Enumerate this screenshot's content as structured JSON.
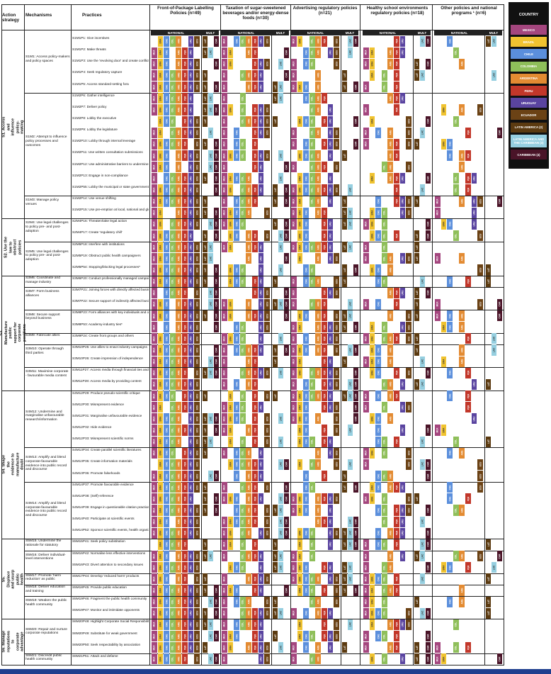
{
  "headers": {
    "action_strategy": "Action strategy",
    "mechanisms": "Mechanisms",
    "practices": "Practices",
    "national": "NATIONAL",
    "mult": "MULT",
    "policies": [
      {
        "label": "Front-of-Package Labelling Policies (n=49)"
      },
      {
        "label": "Taxation of sugar-sweetened beverages and/or energy-dense foods (n=30)"
      },
      {
        "label": "Advertising regulatory policies (n=21)"
      },
      {
        "label": "Healthy school environments regulatory policies (n=18)"
      },
      {
        "label": "Other policies and national programs ¹ (n=6)"
      }
    ]
  },
  "legend": {
    "title": "COUNTRY",
    "items": [
      {
        "label": "MEXICO",
        "color": "#a4467e"
      },
      {
        "label": "BRAZIL",
        "color": "#f0c330"
      },
      {
        "label": "CHILE",
        "color": "#5b8fdc"
      },
      {
        "label": "COLOMBIA",
        "color": "#8fbf5a"
      },
      {
        "label": "ARGENTINA",
        "color": "#e38b32"
      },
      {
        "label": "PERU",
        "color": "#c2372a"
      },
      {
        "label": "URUGUAY",
        "color": "#5a44a0"
      },
      {
        "label": "ECUADOR",
        "color": "#6b4215"
      },
      {
        "label": "LATIN AMERICA (2)",
        "color": "#5b3a10"
      },
      {
        "label": "LATIN AMERICA AND THE CARIBBEAN (3)",
        "color": "#96cfe0"
      },
      {
        "label": "CARIBBEAN (4)",
        "color": "#4a1428"
      }
    ]
  },
  "codes": {
    "nat": [
      "MEX",
      "BRA",
      "CHE",
      "COL",
      "ARG",
      "PER",
      "URU",
      "ECU"
    ],
    "mult": [
      "LAT",
      "LAC",
      "CAR"
    ]
  },
  "strategies": [
    {
      "label": "S1. Access and influence policy-making",
      "mechanisms": [
        {
          "label": "S1M1: Access policy-makers and policy spaces",
          "practices": [
            "S1M1P1: Give incentives",
            "S1M1P2: Make threats",
            "S1M1P3: Use the 'revolving door' and create conflicts of interest",
            "S1M1P4: Seek regulatory capture",
            "S1M1P5: Access standard-setting fora"
          ]
        },
        {
          "label": "S1M2: Attempt to influence policy processes and outcomes",
          "practices": [
            "S1M2P6: Gather intelligence",
            "S1M2P7: Deliver policy",
            "S1M2P8: Lobby the executive",
            "S1M2P9: Lobby the legislature",
            "S1M2P10: Lobby through internal leverage",
            "S1M2P11: Use written consultation submissions",
            "S1M2P12: Use administrative barriers to undermine adopted policy",
            "S1M2P13: Engage in non-compliance",
            "S1M2P55: Lobby the municipal or state governments*"
          ]
        },
        {
          "label": "S1M3: Manage policy venues",
          "practices": [
            "S1M2P14: Use venue shifting",
            "S1M2P15: Use pre-emption at local, national and global levels"
          ]
        }
      ]
    },
    {
      "label": "S2. Use the law to obstruct policies",
      "mechanisms": [
        {
          "label": "S2M4: Use legal challenges to policy pre- and post-adoption",
          "practices": [
            "S2M4P16: Threaten/take legal action",
            "S2M4P17: Create 'regulatory chill'"
          ]
        },
        {
          "label": "S2M5: Use legal challenges to policy pre- and post-adoption",
          "practices": [
            "S2M5P18: Interfere with institutions",
            "S2M5P19: Obstruct public health campaigners",
            "S2M5P54: Stopping/blocking legal processes*"
          ]
        }
      ]
    },
    {
      "label": "S3. Manufacture public support for corporate positions",
      "mechanisms": [
        {
          "label": "S3M6: Coordinate and manage industry",
          "practices": [
            "S3M6P20: Conduct professionally managed campaigns"
          ]
        },
        {
          "label": "S3M7: Form business alliances",
          "practices": [
            "S3M7P21: Joining forces with directly affected businesses",
            "S3M7P22: Secure support of indirectly affected businesses"
          ]
        },
        {
          "label": "S3M8: Secure support beyond business",
          "practices": [
            "S3M8P23: Form alliances with key individuals and organisations",
            "S3M8P53: Academy-industry ties*"
          ]
        },
        {
          "label": "S3M9: Fabricate allies",
          "practices": [
            "S3M9P24: Create front groups and others"
          ]
        },
        {
          "label": "S3M10: Operate through third parties",
          "practices": [
            "S3M10P25: Use allies to enact industry campaigns",
            "S3M10P26: Create impression of independence"
          ]
        },
        {
          "label": "S3M11: Maximise corporate - favourable media content",
          "practices": [
            "S3M11P27: Access media through financial ties and relationships",
            "S3M11P28: Access media by providing content"
          ]
        }
      ]
    },
    {
      "label": "S4. Shape the evidence to manufacture doubt",
      "mechanisms": [
        {
          "label": "S4M12: Undermine and marginalise unfavourable research/information",
          "practices": [
            "S4M12P29: Produce pseudo-scientific critique",
            "S4M12P30: Misrepresent evidence",
            "S4M12P31: Marginalise unfavourable evidence",
            "S4M12P32: Hide evidence",
            "S4M12P33: Misrepresent scientific norms"
          ]
        },
        {
          "label": "S4M13: Amplify and blend corporate-favourable evidence into public record and discourse",
          "practices": [
            "S4M13P34: Create parallel scientific literatures",
            "S4M13P35: Create information materials",
            "S4M13P36: Promote falsehoods"
          ]
        },
        {
          "label": "S4M14: Amplify and blend corporate-favourable evidence into public record and discourse",
          "practices": [
            "S4M14P37: Promote favourable evidence",
            "S4M14P38: (Self)-reference",
            "S4M14P39: Engage in questionable citation practices",
            "S4M14P40: Participate at scientific events",
            "S4M14P52: Sponsor scientific events, health organizations and/or researchers*"
          ]
        }
      ]
    },
    {
      "label": "S5. Displace and usurp public health",
      "mechanisms": [
        {
          "label": "S5M15: Undermine the rationale for statutory",
          "practices": [
            "S5M15P41: Seek policy substitution"
          ]
        },
        {
          "label": "S5M16: Deliver individual-level interventions",
          "practices": [
            "S5M16P42: Normalise less effective interventions",
            "S5M16P43: Divert attention to secondary issues"
          ]
        },
        {
          "label": "S5M17: Promote 'harm reduction' as public",
          "practices": [
            "S5M17P44: Develop 'reduced harm' products"
          ]
        },
        {
          "label": "S5M18: Deliver education and training",
          "practices": [
            "S5M18P45: Provide public education"
          ]
        },
        {
          "label": "S5M19: Weaken the public health community",
          "practices": [
            "S5M19P46: Fragment the public health community",
            "S5M19P47: Monitor and intimidate opponents"
          ]
        }
      ]
    },
    {
      "label": "S6. Manage reputations to corporate advantage",
      "mechanisms": [
        {
          "label": "S6M20: Repair and nurture corporate reputations",
          "practices": [
            "S6M20P48: Highlight Corporate Social Responsibility and good deeds",
            "S6M20P49: Substitute for weak government",
            "S6M20P50: Seek respectability by association"
          ]
        },
        {
          "label": "S6M21: Discredit public health community",
          "practices": [
            "S6M21P51: Attack and defame"
          ]
        }
      ]
    }
  ]
}
